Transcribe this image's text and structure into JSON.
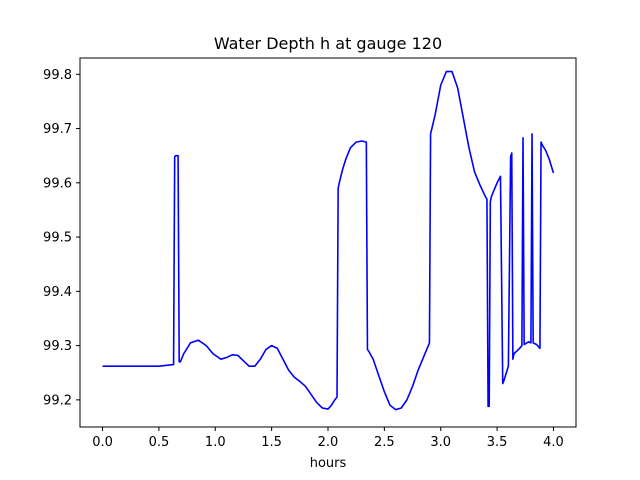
{
  "chart_data": {
    "type": "line",
    "title": "Water Depth h at gauge 120",
    "xlabel": "hours",
    "ylabel": "",
    "xlim": [
      -0.2,
      4.2
    ],
    "ylim": [
      99.15,
      99.83
    ],
    "xticks": [
      0.0,
      0.5,
      1.0,
      1.5,
      2.0,
      2.5,
      3.0,
      3.5,
      4.0
    ],
    "xtick_labels": [
      "0.0",
      "0.5",
      "1.0",
      "1.5",
      "2.0",
      "2.5",
      "3.0",
      "3.5",
      "4.0"
    ],
    "yticks": [
      99.2,
      99.3,
      99.4,
      99.5,
      99.6,
      99.7,
      99.8
    ],
    "ytick_labels": [
      "99.2",
      "99.3",
      "99.4",
      "99.5",
      "99.6",
      "99.7",
      "99.8"
    ],
    "grid": false,
    "legend": "none",
    "series": [
      {
        "color": "#0000ff",
        "x": [
          0.0,
          0.3,
          0.5,
          0.63,
          0.64,
          0.65,
          0.67,
          0.68,
          0.69,
          0.72,
          0.78,
          0.85,
          0.92,
          0.98,
          1.05,
          1.1,
          1.15,
          1.2,
          1.25,
          1.3,
          1.35,
          1.4,
          1.45,
          1.5,
          1.55,
          1.6,
          1.65,
          1.7,
          1.75,
          1.8,
          1.9,
          1.95,
          2.0,
          2.03,
          2.06,
          2.08,
          2.09,
          2.1,
          2.13,
          2.16,
          2.2,
          2.25,
          2.3,
          2.34,
          2.35,
          2.36,
          2.4,
          2.45,
          2.5,
          2.55,
          2.6,
          2.65,
          2.7,
          2.75,
          2.8,
          2.85,
          2.9,
          2.91,
          2.95,
          3.0,
          3.05,
          3.1,
          3.15,
          3.2,
          3.25,
          3.3,
          3.35,
          3.4,
          3.41,
          3.42,
          3.43,
          3.44,
          3.45,
          3.5,
          3.53,
          3.55,
          3.56,
          3.6,
          3.62,
          3.63,
          3.64,
          3.65,
          3.7,
          3.72,
          3.73,
          3.74,
          3.78,
          3.8,
          3.81,
          3.82,
          3.85,
          3.88,
          3.89,
          3.9,
          3.93,
          3.96,
          4.0
        ],
        "y": [
          99.262,
          99.262,
          99.262,
          99.265,
          99.648,
          99.65,
          99.65,
          99.27,
          99.27,
          99.285,
          99.305,
          99.31,
          99.3,
          99.285,
          99.275,
          99.278,
          99.283,
          99.282,
          99.272,
          99.262,
          99.262,
          99.275,
          99.293,
          99.3,
          99.295,
          99.275,
          99.255,
          99.242,
          99.234,
          99.225,
          99.195,
          99.185,
          99.183,
          99.19,
          99.2,
          99.205,
          99.59,
          99.6,
          99.625,
          99.645,
          99.665,
          99.675,
          99.677,
          99.675,
          99.293,
          99.29,
          99.275,
          99.245,
          99.215,
          99.19,
          99.182,
          99.185,
          99.2,
          99.225,
          99.255,
          99.28,
          99.305,
          99.69,
          99.725,
          99.78,
          99.805,
          99.805,
          99.775,
          99.72,
          99.665,
          99.62,
          99.595,
          99.573,
          99.57,
          99.188,
          99.188,
          99.565,
          99.575,
          99.6,
          99.612,
          99.23,
          99.235,
          99.262,
          99.648,
          99.655,
          99.275,
          99.285,
          99.295,
          99.3,
          99.683,
          99.302,
          99.307,
          99.305,
          99.69,
          99.305,
          99.302,
          99.295,
          99.675,
          99.67,
          99.66,
          99.645,
          99.618
        ]
      }
    ]
  }
}
